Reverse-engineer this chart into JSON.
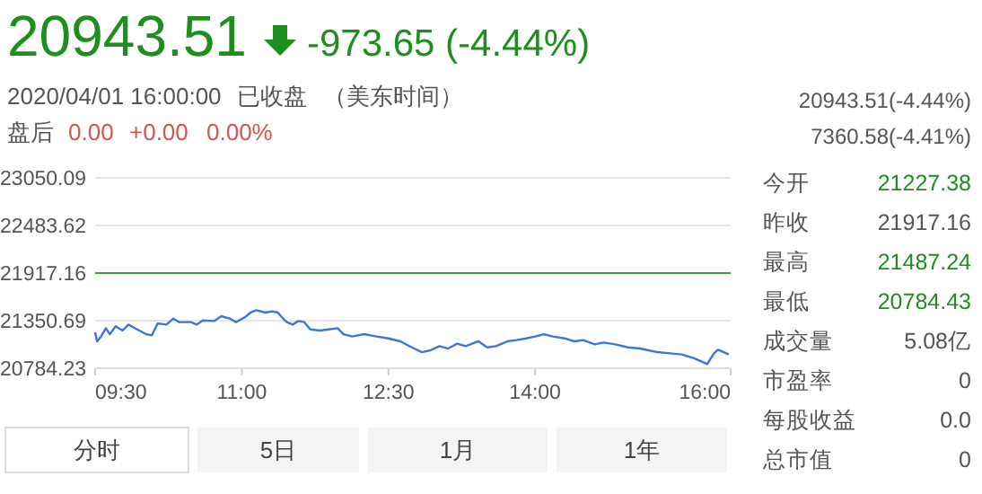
{
  "chart_data": {
    "type": "line",
    "title": "20943.51",
    "subtitle": "-973.65 (-4.44%)",
    "x": [
      9.5,
      9.52,
      9.56,
      9.61,
      9.65,
      9.71,
      9.78,
      9.84,
      9.93,
      10.02,
      10.08,
      10.14,
      10.23,
      10.3,
      10.36,
      10.48,
      10.54,
      10.6,
      10.72,
      10.79,
      10.88,
      10.94,
      11.03,
      11.09,
      11.15,
      11.24,
      11.31,
      11.37,
      11.4,
      11.46,
      11.52,
      11.58,
      11.64,
      11.7,
      11.8,
      11.89,
      11.98,
      12.04,
      12.13,
      12.25,
      12.38,
      12.5,
      12.62,
      12.74,
      12.84,
      12.93,
      13.02,
      13.11,
      13.2,
      13.29,
      13.42,
      13.51,
      13.6,
      13.72,
      13.81,
      13.91,
      14.0,
      14.09,
      14.18,
      14.3,
      14.4,
      14.49,
      14.61,
      14.7,
      14.82,
      14.95,
      15.07,
      15.16,
      15.25,
      15.38,
      15.5,
      15.62,
      15.68,
      15.76,
      15.79,
      15.83,
      15.87,
      15.93,
      15.98
    ],
    "series": [
      {
        "color": "#3a78d8",
        "values": [
          21212,
          21105,
          21162,
          21261,
          21190,
          21283,
          21233,
          21304,
          21247,
          21190,
          21176,
          21318,
          21304,
          21375,
          21333,
          21333,
          21304,
          21354,
          21347,
          21404,
          21375,
          21333,
          21390,
          21447,
          21475,
          21447,
          21461,
          21447,
          21404,
          21333,
          21304,
          21347,
          21333,
          21247,
          21233,
          21247,
          21261,
          21190,
          21162,
          21190,
          21162,
          21140,
          21105,
          21033,
          20976,
          20998,
          21048,
          21019,
          21076,
          21048,
          21105,
          21033,
          21048,
          21105,
          21119,
          21140,
          21162,
          21190,
          21162,
          21140,
          21105,
          21119,
          21069,
          21090,
          21069,
          21033,
          21019,
          20998,
          20976,
          20962,
          20948,
          20905,
          20877,
          20834,
          20891,
          20962,
          21005,
          20976,
          20948
        ]
      }
    ],
    "xlim": [
      9.5,
      16.0
    ],
    "xticks": [
      {
        "value": 9.5,
        "label": "09:30"
      },
      {
        "value": 11,
        "label": "11:00"
      },
      {
        "value": 12.5,
        "label": "12:30"
      },
      {
        "value": 14,
        "label": "14:00"
      },
      {
        "value": 16,
        "label": "16:00"
      }
    ],
    "ylim": [
      20784.23,
      23050.09
    ],
    "yticks": [
      20784.23,
      21350.69,
      21917.16,
      22483.62,
      23050.09
    ],
    "grid": "y",
    "ref_lines": [
      {
        "axis": "y",
        "value": 21917.16,
        "color": "#3c9a3c"
      }
    ],
    "annotations": [
      "2020/04/01 16:00:00",
      "已收盘",
      "（美东时间）",
      "盘后",
      "0.00",
      "+0.00",
      "0.00%",
      "20943.51(-4.44%)",
      "7360.58(-4.41%)",
      "今开",
      "21227.38",
      "昨收",
      "21917.16",
      "最高",
      "21487.24",
      "最低",
      "20784.43",
      "成交量",
      "5.08亿",
      "市盈率",
      "0",
      "每股收益",
      "0.0",
      "总市值",
      "0",
      "分时",
      "5日",
      "1月",
      "1年"
    ]
  }
}
